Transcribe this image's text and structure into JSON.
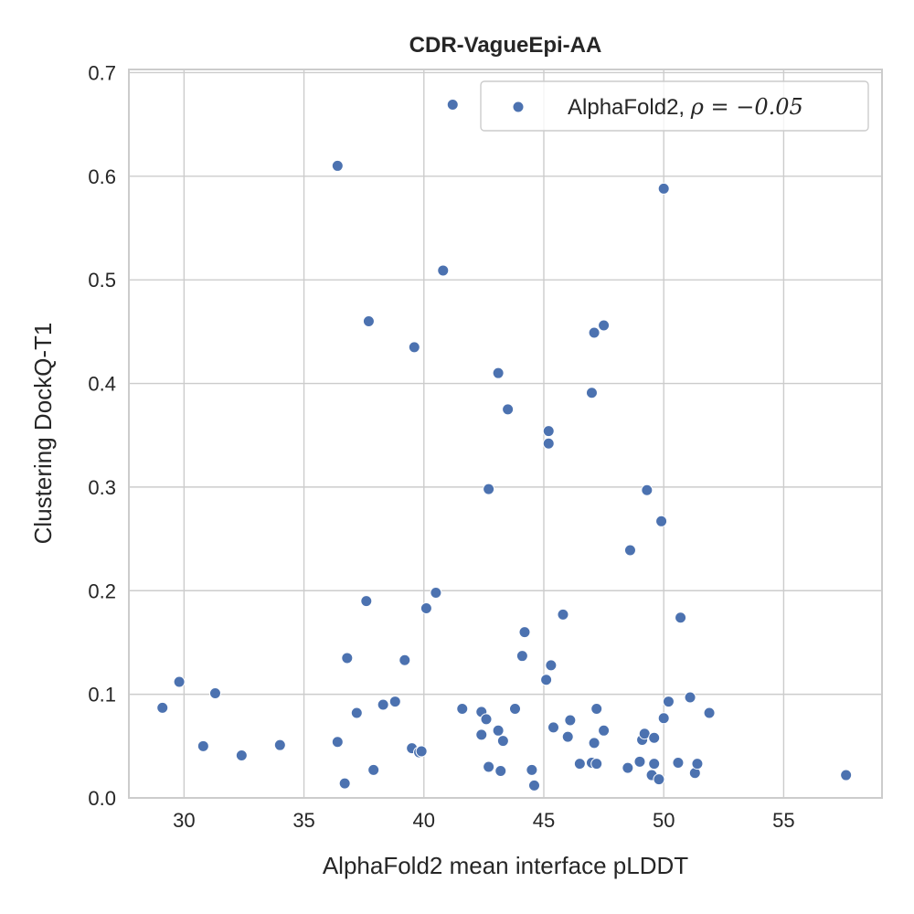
{
  "chart_data": {
    "type": "scatter",
    "title": "CDR-VagueEpi-AA",
    "xlabel": "AlphaFold2 mean interface pLDDT",
    "ylabel": "Clustering DockQ-T1",
    "xlim": [
      27.7,
      59.1
    ],
    "ylim": [
      0.0,
      0.703
    ],
    "x_ticks": [
      30,
      35,
      40,
      45,
      50,
      55
    ],
    "x_tick_labels": [
      "30",
      "35",
      "40",
      "45",
      "50",
      "55"
    ],
    "y_ticks": [
      0.0,
      0.1,
      0.2,
      0.3,
      0.4,
      0.5,
      0.6,
      0.7
    ],
    "y_tick_labels": [
      "0.0",
      "0.1",
      "0.2",
      "0.3",
      "0.4",
      "0.5",
      "0.6",
      "0.7"
    ],
    "grid": true,
    "legend_position": "top-right",
    "colors": {
      "series": "#4c72b0",
      "grid": "#cccccc",
      "text": "#262626"
    },
    "series": [
      {
        "name": "AlphaFold2, ρ = −0.05",
        "legend_label_plain": "AlphaFold2, ",
        "legend_label_math": "ρ = −0.05",
        "points": [
          [
            29.1,
            0.087
          ],
          [
            29.8,
            0.112
          ],
          [
            30.8,
            0.05
          ],
          [
            31.3,
            0.101
          ],
          [
            32.4,
            0.041
          ],
          [
            34.0,
            0.051
          ],
          [
            36.4,
            0.054
          ],
          [
            36.7,
            0.014
          ],
          [
            36.8,
            0.135
          ],
          [
            37.2,
            0.082
          ],
          [
            37.6,
            0.19
          ],
          [
            37.7,
            0.46
          ],
          [
            37.9,
            0.027
          ],
          [
            38.3,
            0.09
          ],
          [
            38.8,
            0.093
          ],
          [
            39.2,
            0.133
          ],
          [
            39.5,
            0.048
          ],
          [
            39.8,
            0.044
          ],
          [
            39.9,
            0.045
          ],
          [
            40.1,
            0.183
          ],
          [
            40.5,
            0.198
          ],
          [
            40.8,
            0.509
          ],
          [
            39.6,
            0.435
          ],
          [
            36.4,
            0.61
          ],
          [
            41.2,
            0.669
          ],
          [
            41.6,
            0.086
          ],
          [
            42.4,
            0.083
          ],
          [
            42.4,
            0.061
          ],
          [
            42.6,
            0.076
          ],
          [
            42.7,
            0.298
          ],
          [
            42.7,
            0.03
          ],
          [
            43.1,
            0.065
          ],
          [
            43.2,
            0.026
          ],
          [
            43.1,
            0.41
          ],
          [
            43.3,
            0.055
          ],
          [
            43.5,
            0.375
          ],
          [
            43.8,
            0.086
          ],
          [
            44.1,
            0.137
          ],
          [
            44.2,
            0.16
          ],
          [
            44.5,
            0.027
          ],
          [
            44.6,
            0.012
          ],
          [
            45.1,
            0.114
          ],
          [
            45.2,
            0.342
          ],
          [
            45.2,
            0.354
          ],
          [
            45.3,
            0.128
          ],
          [
            45.4,
            0.068
          ],
          [
            45.8,
            0.177
          ],
          [
            46.0,
            0.059
          ],
          [
            46.1,
            0.075
          ],
          [
            46.5,
            0.033
          ],
          [
            47.0,
            0.391
          ],
          [
            47.0,
            0.034
          ],
          [
            47.1,
            0.449
          ],
          [
            47.1,
            0.053
          ],
          [
            47.2,
            0.086
          ],
          [
            47.2,
            0.033
          ],
          [
            47.5,
            0.456
          ],
          [
            47.5,
            0.065
          ],
          [
            48.5,
            0.029
          ],
          [
            48.6,
            0.239
          ],
          [
            49.0,
            0.035
          ],
          [
            49.1,
            0.056
          ],
          [
            49.2,
            0.062
          ],
          [
            49.3,
            0.297
          ],
          [
            49.5,
            0.022
          ],
          [
            49.6,
            0.058
          ],
          [
            49.6,
            0.033
          ],
          [
            49.8,
            0.018
          ],
          [
            49.9,
            0.267
          ],
          [
            50.0,
            0.588
          ],
          [
            50.0,
            0.077
          ],
          [
            50.2,
            0.093
          ],
          [
            50.6,
            0.034
          ],
          [
            50.7,
            0.174
          ],
          [
            51.1,
            0.097
          ],
          [
            51.3,
            0.024
          ],
          [
            51.4,
            0.033
          ],
          [
            51.9,
            0.082
          ],
          [
            57.6,
            0.022
          ]
        ]
      }
    ]
  }
}
